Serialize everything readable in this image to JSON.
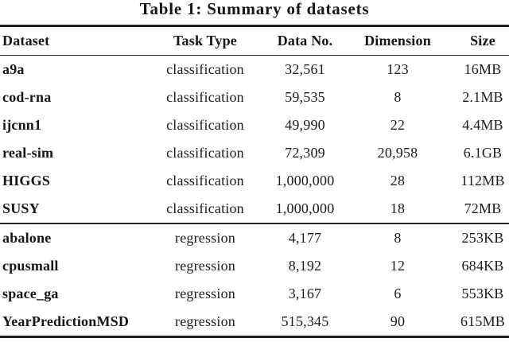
{
  "caption": "Table 1: Summary of datasets",
  "table": {
    "headers": [
      "Dataset",
      "Task Type",
      "Data No.",
      "Dimension",
      "Size"
    ],
    "groups": [
      {
        "rows": [
          {
            "name": "a9a",
            "task_type": "classification",
            "data_no": "32,561",
            "dimension": "123",
            "size": "16MB"
          },
          {
            "name": "cod-rna",
            "task_type": "classification",
            "data_no": "59,535",
            "dimension": "8",
            "size": "2.1MB"
          },
          {
            "name": "ijcnn1",
            "task_type": "classification",
            "data_no": "49,990",
            "dimension": "22",
            "size": "4.4MB"
          },
          {
            "name": "real-sim",
            "task_type": "classification",
            "data_no": "72,309",
            "dimension": "20,958",
            "size": "6.1GB"
          },
          {
            "name": "HIGGS",
            "task_type": "classification",
            "data_no": "1,000,000",
            "dimension": "28",
            "size": "112MB"
          },
          {
            "name": "SUSY",
            "task_type": "classification",
            "data_no": "1,000,000",
            "dimension": "18",
            "size": "72MB"
          }
        ]
      },
      {
        "rows": [
          {
            "name": "abalone",
            "task_type": "regression",
            "data_no": "4,177",
            "dimension": "8",
            "size": "253KB"
          },
          {
            "name": "cpusmall",
            "task_type": "regression",
            "data_no": "8,192",
            "dimension": "12",
            "size": "684KB"
          },
          {
            "name": "space_ga",
            "task_type": "regression",
            "data_no": "3,167",
            "dimension": "6",
            "size": "553KB"
          },
          {
            "name": "YearPredictionMSD",
            "task_type": "regression",
            "data_no": "515,345",
            "dimension": "90",
            "size": "615MB"
          }
        ]
      }
    ]
  },
  "colors": {
    "text": "#1c1c1c",
    "rule": "#1f1f1f",
    "background": "#ffffff"
  }
}
